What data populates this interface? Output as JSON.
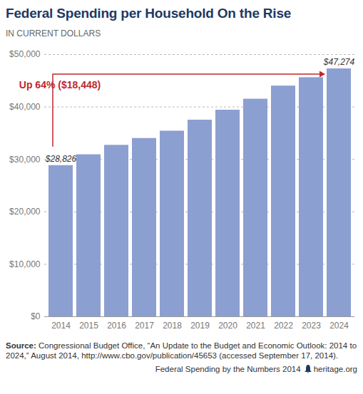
{
  "chart_data": {
    "type": "bar",
    "title": "Federal Spending per Household On the Rise",
    "subtitle": "IN CURRENT DOLLARS",
    "categories": [
      "2014",
      "2015",
      "2016",
      "2017",
      "2018",
      "2019",
      "2020",
      "2021",
      "2022",
      "2023",
      "2024"
    ],
    "values": [
      28826,
      30900,
      32700,
      34000,
      35400,
      37500,
      39400,
      41500,
      44000,
      45600,
      47274
    ],
    "value_labels": [
      "$28,826",
      null,
      null,
      null,
      null,
      null,
      null,
      null,
      null,
      null,
      "$47,274"
    ],
    "data_labels": true,
    "color": "#8c9fd1",
    "ylim": [
      0,
      50000
    ],
    "yticks": [
      {
        "value": 0,
        "label": "$0"
      },
      {
        "value": 10000,
        "label": "$10,000"
      },
      {
        "value": 20000,
        "label": "$20,000"
      },
      {
        "value": 30000,
        "label": "$30,000"
      },
      {
        "value": 40000,
        "label": "$40,000"
      },
      {
        "value": 50000,
        "label": "$50,000"
      }
    ],
    "grid": true,
    "annotation": "Up 64% ($18,448)",
    "source_label": "Source:",
    "source": "Congressional Budget Office, “An Update to the Budget and Economic Outlook: 2014 to 2024,” August 2014, http://www.cbo.gov/publication/45653 (accessed September 17, 2014).",
    "footer": "Federal Spending by the Numbers 2014",
    "footer_site": "heritage.org"
  }
}
